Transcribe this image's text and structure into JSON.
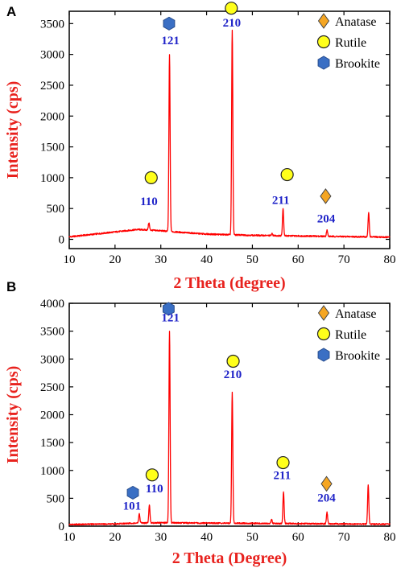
{
  "chart_data": [
    {
      "type": "line",
      "panel": "A",
      "xlabel": "2 Theta (degree)",
      "ylabel": "Intensity (cps)",
      "xlim": [
        10,
        80
      ],
      "ylim": [
        -150,
        3700
      ],
      "xticks": [
        10,
        20,
        30,
        40,
        50,
        60,
        70,
        80
      ],
      "yticks": [
        0,
        500,
        1000,
        1500,
        2000,
        2500,
        3000,
        3500
      ],
      "grid": false,
      "legend_position": "top-right",
      "legend": [
        {
          "label": "Anatase",
          "marker": "diamond",
          "color": "#f5a623"
        },
        {
          "label": "Rutile",
          "marker": "circle",
          "color": "#ffff1a"
        },
        {
          "label": "Brookite",
          "marker": "hexagon",
          "color": "#3a6fc4"
        }
      ],
      "series": [
        {
          "color": "#ff0000",
          "baseline": [
            [
              10,
              40
            ],
            [
              15,
              80
            ],
            [
              20,
              120
            ],
            [
              25,
              160
            ],
            [
              30,
              140
            ],
            [
              35,
              110
            ],
            [
              40,
              85
            ],
            [
              45,
              75
            ],
            [
              50,
              65
            ],
            [
              55,
              60
            ],
            [
              60,
              55
            ],
            [
              65,
              50
            ],
            [
              70,
              45
            ],
            [
              75,
              40
            ],
            [
              80,
              35
            ]
          ],
          "peaks": [
            {
              "x": 27.4,
              "y": 270
            },
            {
              "x": 31.9,
              "y": 2990
            },
            {
              "x": 33.0,
              "y": 120
            },
            {
              "x": 45.6,
              "y": 3390
            },
            {
              "x": 54.3,
              "y": 90
            },
            {
              "x": 56.7,
              "y": 500
            },
            {
              "x": 66.3,
              "y": 150
            },
            {
              "x": 75.4,
              "y": 430
            }
          ]
        }
      ],
      "annotations": [
        {
          "text": "121",
          "x": 32.1,
          "y": 3230,
          "marker": "hexagon",
          "marker_x": 31.8,
          "marker_y": 3500
        },
        {
          "text": "210",
          "x": 45.5,
          "y": 3520,
          "marker": "circle",
          "marker_x": 45.4,
          "marker_y": 3750
        },
        {
          "text": "110",
          "x": 27.4,
          "y": 620,
          "marker": "circle",
          "marker_x": 27.9,
          "marker_y": 1000
        },
        {
          "text": "211",
          "x": 56.2,
          "y": 640,
          "marker": "circle",
          "marker_x": 57.6,
          "marker_y": 1050
        },
        {
          "text": "204",
          "x": 66.1,
          "y": 340,
          "marker": "diamond",
          "marker_x": 66.0,
          "marker_y": 700
        }
      ]
    },
    {
      "type": "line",
      "panel": "B",
      "xlabel": "2 Theta (Degree)",
      "ylabel": "Intensity (cps)",
      "xlim": [
        10,
        80
      ],
      "ylim": [
        0,
        4000
      ],
      "xticks": [
        10,
        20,
        30,
        40,
        50,
        60,
        70,
        80
      ],
      "yticks": [
        0,
        500,
        1000,
        1500,
        2000,
        2500,
        3000,
        3500,
        4000
      ],
      "grid": false,
      "legend_position": "top-right",
      "legend": [
        {
          "label": "Anatase",
          "marker": "diamond",
          "color": "#f5a623"
        },
        {
          "label": "Rutile",
          "marker": "circle",
          "color": "#ffff1a"
        },
        {
          "label": "Brookite",
          "marker": "hexagon",
          "color": "#3a6fc4"
        }
      ],
      "series": [
        {
          "color": "#ff0000",
          "baseline": [
            [
              10,
              30
            ],
            [
              20,
              40
            ],
            [
              25,
              55
            ],
            [
              30,
              60
            ],
            [
              40,
              55
            ],
            [
              50,
              50
            ],
            [
              60,
              45
            ],
            [
              70,
              40
            ],
            [
              80,
              35
            ]
          ],
          "peaks": [
            {
              "x": 25.3,
              "y": 220
            },
            {
              "x": 27.5,
              "y": 380
            },
            {
              "x": 31.9,
              "y": 3500
            },
            {
              "x": 45.6,
              "y": 2400
            },
            {
              "x": 54.2,
              "y": 120
            },
            {
              "x": 56.8,
              "y": 620
            },
            {
              "x": 66.3,
              "y": 250
            },
            {
              "x": 75.3,
              "y": 740
            }
          ]
        }
      ],
      "annotations": [
        {
          "text": "121",
          "x": 32.1,
          "y": 3750,
          "marker": "hexagon",
          "marker_x": 31.7,
          "marker_y": 3900
        },
        {
          "text": "210",
          "x": 45.7,
          "y": 2730,
          "marker": "circle",
          "marker_x": 45.8,
          "marker_y": 2960
        },
        {
          "text": "110",
          "x": 28.6,
          "y": 680,
          "marker": "circle",
          "marker_x": 28.1,
          "marker_y": 920
        },
        {
          "text": "101",
          "x": 23.7,
          "y": 370,
          "marker": "hexagon",
          "marker_x": 23.9,
          "marker_y": 600
        },
        {
          "text": "211",
          "x": 56.5,
          "y": 920,
          "marker": "circle",
          "marker_x": 56.7,
          "marker_y": 1140
        },
        {
          "text": "204",
          "x": 66.2,
          "y": 510,
          "marker": "diamond",
          "marker_x": 66.2,
          "marker_y": 760
        }
      ]
    }
  ]
}
